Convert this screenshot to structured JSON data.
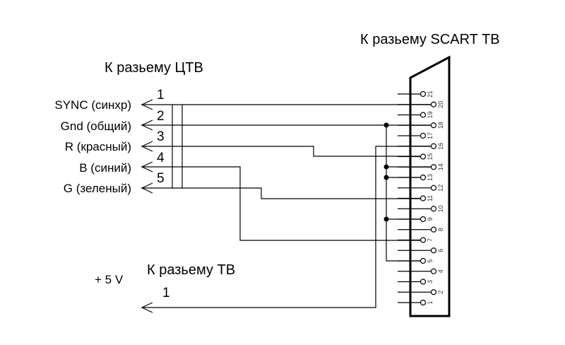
{
  "titles": {
    "scart": "К разьему SCART ТВ",
    "ctv": "К разьему ЦТВ",
    "tv": "К разьему ТВ"
  },
  "ctv_signals": [
    {
      "number": "1",
      "label": "SYNC (синхр)",
      "scart_pin": 20
    },
    {
      "number": "2",
      "label": "Gnd (общий)",
      "scart_pin": 18
    },
    {
      "number": "3",
      "label": "R (красный)",
      "scart_pin": 15
    },
    {
      "number": "4",
      "label": "B (синий)",
      "scart_pin": 7
    },
    {
      "number": "5",
      "label": "G (зеленый)",
      "scart_pin": 11
    }
  ],
  "ground_pins": [
    18,
    14,
    13,
    9,
    5
  ],
  "tv_signal": {
    "number": "1",
    "label": "+ 5 V",
    "scart_pin": 16
  },
  "scart_pins": [
    "1",
    "2",
    "3",
    "4",
    "5",
    "6",
    "7",
    "8",
    "9",
    "10",
    "11",
    "12",
    "13",
    "14",
    "15",
    "16",
    "17",
    "18",
    "19",
    "20",
    "21"
  ]
}
